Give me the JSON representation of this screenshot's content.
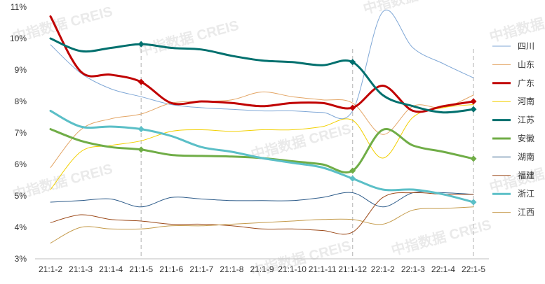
{
  "chart_data": {
    "type": "line",
    "title": "",
    "xlabel": "",
    "ylabel": "",
    "watermark": "中指数据 CREIS",
    "categories": [
      "21:1-2",
      "21:1-3",
      "21:1-4",
      "21:1-5",
      "21:1-6",
      "21:1-7",
      "21:1-8",
      "21:1-9",
      "21:1-10",
      "21:1-11",
      "21:1-12",
      "22:1-2",
      "22:1-3",
      "22:1-4",
      "22:1-5"
    ],
    "y_ticks": [
      "3%",
      "4%",
      "5%",
      "6%",
      "7%",
      "8%",
      "9%",
      "10%",
      "11%"
    ],
    "ylim": [
      3,
      11
    ],
    "grid": false,
    "legend_position": "right",
    "highlight_categories": [
      "21:1-5",
      "21:1-12",
      "22:1-5"
    ],
    "series": [
      {
        "name": "四川",
        "color": "#7FA7D6",
        "width": 1,
        "markers": false,
        "values": [
          9.8,
          8.9,
          8.4,
          8.15,
          7.9,
          7.8,
          7.75,
          7.7,
          7.7,
          7.65,
          7.7,
          10.85,
          9.7,
          9.2,
          8.75
        ]
      },
      {
        "name": "山东",
        "color": "#E3A565",
        "width": 1,
        "markers": false,
        "values": [
          5.9,
          7.1,
          7.45,
          7.6,
          7.95,
          8.0,
          8.05,
          8.3,
          8.15,
          8.05,
          7.95,
          6.95,
          7.85,
          7.8,
          8.2
        ]
      },
      {
        "name": "广东",
        "color": "#C00000",
        "width": 3,
        "markers": true,
        "values": [
          10.7,
          8.95,
          8.85,
          8.62,
          7.95,
          8.0,
          7.95,
          7.85,
          7.95,
          7.95,
          7.8,
          8.5,
          7.7,
          7.85,
          8.0
        ]
      },
      {
        "name": "河南",
        "color": "#F2D000",
        "width": 1,
        "markers": false,
        "values": [
          5.2,
          6.4,
          6.6,
          6.75,
          7.05,
          7.1,
          7.05,
          7.1,
          7.1,
          7.2,
          7.4,
          6.2,
          7.5,
          7.8,
          7.9
        ]
      },
      {
        "name": "江苏",
        "color": "#00706E",
        "width": 3,
        "markers": true,
        "values": [
          10.0,
          9.6,
          9.7,
          9.82,
          9.7,
          9.65,
          9.45,
          9.3,
          9.25,
          9.15,
          9.25,
          8.2,
          7.85,
          7.65,
          7.75
        ]
      },
      {
        "name": "安徽",
        "color": "#70AD47",
        "width": 3,
        "markers": true,
        "values": [
          7.12,
          6.75,
          6.55,
          6.47,
          6.3,
          6.27,
          6.25,
          6.2,
          6.1,
          6.0,
          5.8,
          7.1,
          6.6,
          6.4,
          6.18
        ]
      },
      {
        "name": "湖南",
        "color": "#2E5C8A",
        "width": 1,
        "markers": false,
        "values": [
          4.8,
          4.85,
          4.9,
          4.65,
          4.95,
          4.9,
          4.85,
          4.85,
          4.85,
          4.95,
          5.1,
          4.65,
          5.1,
          5.1,
          5.05
        ]
      },
      {
        "name": "福建",
        "color": "#9C4A1A",
        "width": 1,
        "markers": false,
        "values": [
          4.15,
          4.4,
          4.25,
          4.2,
          4.1,
          4.1,
          4.05,
          3.95,
          3.95,
          3.9,
          3.85,
          4.95,
          5.1,
          5.05,
          5.05
        ]
      },
      {
        "name": "浙江",
        "color": "#5BBFC7",
        "width": 3,
        "markers": true,
        "values": [
          7.7,
          7.2,
          7.2,
          7.12,
          6.9,
          6.55,
          6.4,
          6.2,
          6.05,
          5.9,
          5.55,
          5.2,
          5.2,
          5.05,
          4.8
        ]
      },
      {
        "name": "江西",
        "color": "#C49A4A",
        "width": 1,
        "markers": false,
        "values": [
          3.5,
          4.0,
          3.95,
          3.95,
          4.05,
          4.05,
          4.1,
          4.15,
          4.2,
          4.25,
          4.25,
          4.1,
          4.55,
          4.6,
          4.65
        ]
      }
    ]
  }
}
